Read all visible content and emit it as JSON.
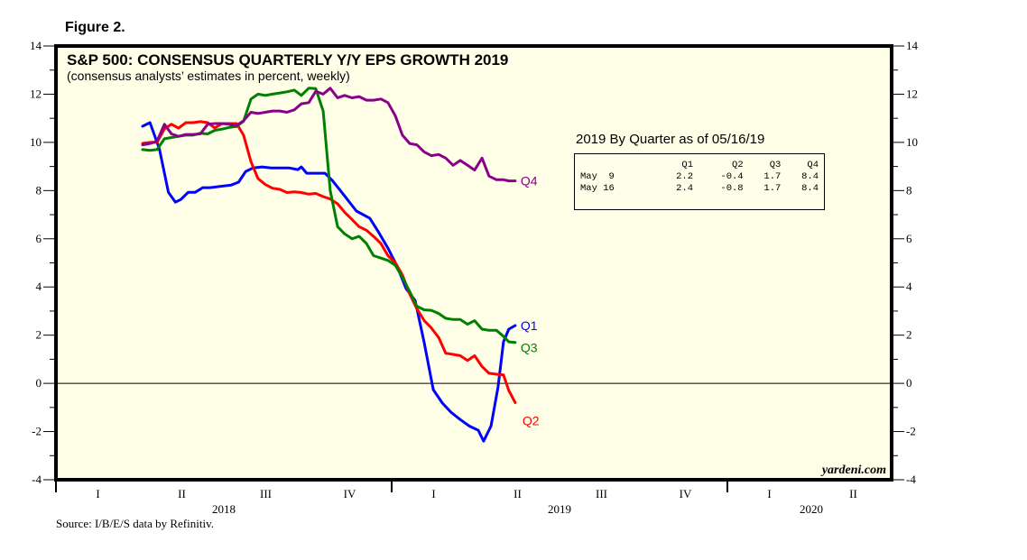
{
  "figure_label": "Figure 2.",
  "chart_data": {
    "type": "line",
    "title": "S&P 500: CONSENSUS QUARTERLY Y/Y EPS GROWTH 2019",
    "subtitle": "(consensus analysts’ estimates in percent, weekly)",
    "xlabel": "",
    "ylabel": "",
    "ylim": [
      -4,
      14
    ],
    "xlim": [
      2018.0,
      2020.5
    ],
    "y_ticks": [
      "14",
      "12",
      "10",
      "8",
      "6",
      "4",
      "2",
      "0",
      "-2",
      "-4"
    ],
    "y_tick_values": [
      14,
      12,
      10,
      8,
      6,
      4,
      2,
      0,
      -2,
      -4
    ],
    "x_quarter_ticks": [
      {
        "label": "I",
        "x": 2018.125
      },
      {
        "label": "II",
        "x": 2018.375
      },
      {
        "label": "III",
        "x": 2018.625
      },
      {
        "label": "IV",
        "x": 2018.875
      },
      {
        "label": "I",
        "x": 2019.125
      },
      {
        "label": "II",
        "x": 2019.375
      },
      {
        "label": "III",
        "x": 2019.625
      },
      {
        "label": "IV",
        "x": 2019.875
      },
      {
        "label": "I",
        "x": 2020.125
      },
      {
        "label": "II",
        "x": 2020.375
      }
    ],
    "x_year_labels": [
      {
        "label": "2018",
        "x": 2018.5
      },
      {
        "label": "2019",
        "x": 2019.5
      },
      {
        "label": "2020",
        "x": 2020.25
      }
    ],
    "year_boundaries": [
      2018.0,
      2019.0,
      2020.0
    ],
    "zero_line": true,
    "grid": false,
    "legend": "inline-end-labels",
    "series": [
      {
        "name": "Q1",
        "color": "#0000ff",
        "x": [
          2018.258,
          2018.28,
          2018.308,
          2018.335,
          2018.356,
          2018.372,
          2018.394,
          2018.415,
          2018.437,
          2018.458,
          2018.48,
          2018.522,
          2018.544,
          2018.565,
          2018.587,
          2018.614,
          2018.641,
          2018.668,
          2018.694,
          2018.721,
          2018.731,
          2018.747,
          2018.774,
          2018.801,
          2018.823,
          2018.855,
          2018.895,
          2018.935,
          2018.962,
          2018.989,
          2019.016,
          2019.043,
          2019.07,
          2019.097,
          2019.124,
          2019.151,
          2019.177,
          2019.204,
          2019.231,
          2019.258,
          2019.274,
          2019.296,
          2019.317,
          2019.333,
          2019.349,
          2019.368
        ],
        "y": [
          10.67,
          10.82,
          9.73,
          7.93,
          7.52,
          7.63,
          7.93,
          7.93,
          8.12,
          8.12,
          8.16,
          8.23,
          8.35,
          8.79,
          8.94,
          8.98,
          8.94,
          8.94,
          8.94,
          8.87,
          8.98,
          8.72,
          8.72,
          8.72,
          8.42,
          7.86,
          7.15,
          6.85,
          6.25,
          5.61,
          4.86,
          3.93,
          3.44,
          1.68,
          -0.26,
          -0.82,
          -1.2,
          -1.5,
          -1.77,
          -1.95,
          -2.4,
          -1.77,
          -0.15,
          1.72,
          2.25,
          2.4
        ]
      },
      {
        "name": "Q2",
        "color": "#ff0000",
        "x": [
          2018.258,
          2018.28,
          2018.301,
          2018.323,
          2018.344,
          2018.365,
          2018.387,
          2018.408,
          2018.43,
          2018.452,
          2018.473,
          2018.495,
          2018.516,
          2018.538,
          2018.559,
          2018.581,
          2018.602,
          2018.624,
          2018.645,
          2018.667,
          2018.688,
          2018.71,
          2018.731,
          2018.753,
          2018.774,
          2018.796,
          2018.817,
          2018.839,
          2018.86,
          2018.882,
          2018.903,
          2018.925,
          2018.946,
          2018.968,
          2018.989,
          2019.011,
          2019.032,
          2019.054,
          2019.075,
          2019.097,
          2019.118,
          2019.14,
          2019.161,
          2019.183,
          2019.204,
          2019.226,
          2019.247,
          2019.269,
          2019.29,
          2019.312,
          2019.333,
          2019.349,
          2019.368
        ],
        "y": [
          9.96,
          10.0,
          10.0,
          10.56,
          10.75,
          10.59,
          10.82,
          10.82,
          10.86,
          10.82,
          10.6,
          10.78,
          10.78,
          10.78,
          10.3,
          9.2,
          8.5,
          8.25,
          8.1,
          8.05,
          7.92,
          7.95,
          7.92,
          7.85,
          7.88,
          7.75,
          7.65,
          7.45,
          7.1,
          6.8,
          6.5,
          6.35,
          6.1,
          5.8,
          5.3,
          5.0,
          4.5,
          3.7,
          3.1,
          2.6,
          2.3,
          1.9,
          1.25,
          1.2,
          1.15,
          0.95,
          1.15,
          0.7,
          0.42,
          0.38,
          0.35,
          -0.3,
          -0.8
        ]
      },
      {
        "name": "Q3",
        "color": "#008000",
        "x": [
          2018.258,
          2018.28,
          2018.301,
          2018.323,
          2018.344,
          2018.365,
          2018.387,
          2018.408,
          2018.43,
          2018.452,
          2018.473,
          2018.495,
          2018.516,
          2018.538,
          2018.559,
          2018.581,
          2018.602,
          2018.624,
          2018.645,
          2018.667,
          2018.688,
          2018.71,
          2018.731,
          2018.753,
          2018.774,
          2018.796,
          2018.817,
          2018.839,
          2018.86,
          2018.882,
          2018.903,
          2018.925,
          2018.946,
          2018.968,
          2018.989,
          2019.011,
          2019.032,
          2019.054,
          2019.075,
          2019.097,
          2019.118,
          2019.14,
          2019.161,
          2019.183,
          2019.204,
          2019.226,
          2019.247,
          2019.269,
          2019.29,
          2019.312,
          2019.333,
          2019.349,
          2019.368
        ],
        "y": [
          9.7,
          9.67,
          9.7,
          10.15,
          10.2,
          10.25,
          10.3,
          10.3,
          10.38,
          10.35,
          10.5,
          10.55,
          10.62,
          10.66,
          10.88,
          11.8,
          12.0,
          11.95,
          12.0,
          12.05,
          12.1,
          12.17,
          11.95,
          12.25,
          12.23,
          11.3,
          8.0,
          6.5,
          6.2,
          6.0,
          6.1,
          5.8,
          5.3,
          5.2,
          5.1,
          4.9,
          4.4,
          3.8,
          3.2,
          3.05,
          3.03,
          2.9,
          2.7,
          2.65,
          2.65,
          2.45,
          2.6,
          2.25,
          2.2,
          2.2,
          1.95,
          1.72,
          1.7
        ]
      },
      {
        "name": "Q4",
        "color": "#8b008b",
        "x": [
          2018.258,
          2018.28,
          2018.301,
          2018.323,
          2018.344,
          2018.365,
          2018.387,
          2018.408,
          2018.43,
          2018.452,
          2018.473,
          2018.495,
          2018.516,
          2018.538,
          2018.559,
          2018.581,
          2018.602,
          2018.624,
          2018.645,
          2018.667,
          2018.688,
          2018.71,
          2018.731,
          2018.753,
          2018.774,
          2018.796,
          2018.817,
          2018.839,
          2018.86,
          2018.882,
          2018.903,
          2018.925,
          2018.946,
          2018.968,
          2018.989,
          2019.011,
          2019.032,
          2019.054,
          2019.075,
          2019.097,
          2019.118,
          2019.14,
          2019.161,
          2019.183,
          2019.204,
          2019.226,
          2019.247,
          2019.269,
          2019.29,
          2019.312,
          2019.333,
          2019.349,
          2019.368
        ],
        "y": [
          9.9,
          9.95,
          10.05,
          10.75,
          10.35,
          10.25,
          10.33,
          10.33,
          10.35,
          10.75,
          10.78,
          10.78,
          10.75,
          10.7,
          10.9,
          11.25,
          11.2,
          11.25,
          11.3,
          11.3,
          11.25,
          11.35,
          11.6,
          11.65,
          12.12,
          12.0,
          12.25,
          11.85,
          11.95,
          11.85,
          11.9,
          11.75,
          11.75,
          11.8,
          11.65,
          11.1,
          10.3,
          9.95,
          9.9,
          9.6,
          9.45,
          9.5,
          9.35,
          9.05,
          9.25,
          9.05,
          8.85,
          9.35,
          8.6,
          8.45,
          8.45,
          8.4,
          8.4
        ]
      }
    ],
    "end_labels": [
      {
        "series": "Q4",
        "text": "Q4",
        "color": "#8b008b"
      },
      {
        "series": "Q1",
        "text": "Q1",
        "color": "#0000ff"
      },
      {
        "series": "Q3",
        "text": "Q3",
        "color": "#008000"
      },
      {
        "series": "Q2",
        "text": "Q2",
        "color": "#ff0000"
      }
    ],
    "plot_background": "#ffffe8",
    "watermark": "yardeni.com",
    "source": "Source: I/B/E/S data by Refinitiv."
  },
  "table": {
    "title": "2019 By Quarter as of 05/16/19",
    "columns": [
      "",
      "Q1",
      "Q2",
      "Q3",
      "Q4"
    ],
    "rows": [
      [
        "May  9",
        "2.2",
        "-0.4",
        "1.7",
        "8.4"
      ],
      [
        "May 16",
        "2.4",
        "-0.8",
        "1.7",
        "8.4"
      ]
    ]
  }
}
